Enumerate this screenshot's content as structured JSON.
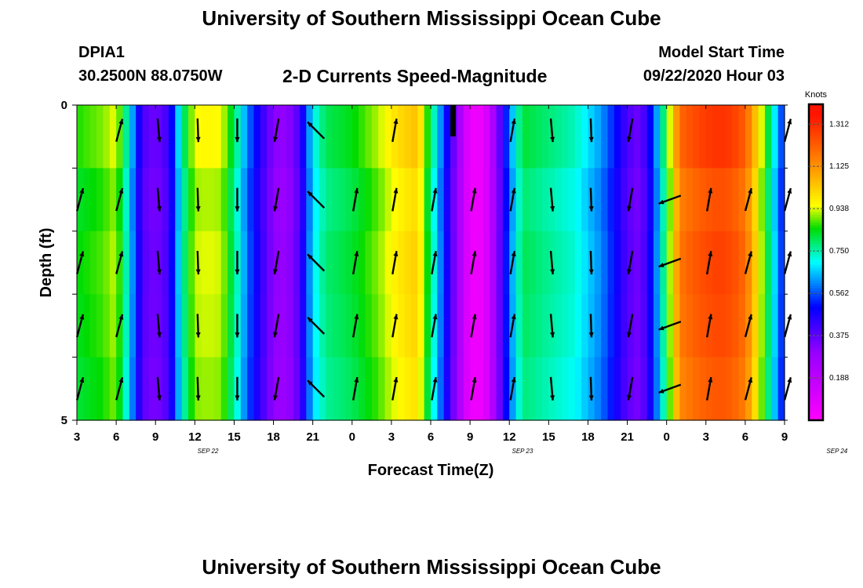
{
  "header": {
    "title": "University of Southern Mississippi Ocean Cube",
    "station_id": "DPIA1",
    "station_coords": "30.2500N 88.0750W",
    "subtitle": "2-D Currents Speed-Magnitude",
    "start_label": "Model Start Time",
    "start_value": "09/22/2020 Hour 03"
  },
  "footer": {
    "title": "University of Southern Mississippi Ocean Cube"
  },
  "chart_data": {
    "type": "heatmap",
    "xlabel": "Forecast Time(Z)",
    "ylabel": "Depth (ft)",
    "x_tick_labels": [
      "3",
      "6",
      "9",
      "12",
      "15",
      "18",
      "21",
      "0",
      "3",
      "6",
      "9",
      "12",
      "15",
      "18",
      "21",
      "0",
      "3",
      "6",
      "9"
    ],
    "date_labels": [
      {
        "label": "SEP 22",
        "hour_index": 10
      },
      {
        "label": "SEP 23",
        "hour_index": 34
      },
      {
        "label": "SEP 24",
        "hour_index": 58
      }
    ],
    "y_tick_labels": [
      "0",
      "5"
    ],
    "ylim": [
      0,
      5
    ],
    "depth_levels": [
      0,
      1,
      2,
      3,
      4,
      5
    ],
    "hours_total": 54,
    "colorbar": {
      "unit_label": "Knots",
      "min": 0.0,
      "max": 1.4,
      "tick_labels": [
        "1.312",
        "1.125",
        "0.938",
        "0.750",
        "0.562",
        "0.375",
        "0.188"
      ],
      "tick_values": [
        1.312,
        1.125,
        0.938,
        0.75,
        0.562,
        0.375,
        0.188
      ]
    },
    "speed_profile_hours": [
      0,
      2,
      3,
      4,
      5,
      6,
      7,
      8,
      9,
      10,
      11,
      12,
      13,
      14,
      15,
      16,
      17,
      18,
      19,
      20,
      21,
      22,
      23,
      24,
      25,
      26,
      27,
      28,
      29,
      30,
      31,
      32,
      33,
      34,
      35,
      36,
      37,
      38,
      39,
      40,
      41,
      42,
      43,
      44,
      45,
      46,
      47,
      48,
      49,
      50,
      51,
      52,
      53,
      54
    ],
    "speed_profile_knots": [
      0.86,
      0.9,
      0.95,
      0.7,
      0.4,
      0.35,
      0.42,
      0.75,
      0.95,
      0.96,
      0.95,
      0.8,
      0.6,
      0.45,
      0.32,
      0.3,
      0.4,
      0.7,
      0.8,
      0.82,
      0.84,
      0.88,
      0.92,
      0.98,
      1.02,
      1.05,
      0.8,
      0.55,
      0.3,
      0.05,
      0.05,
      0.3,
      0.6,
      0.82,
      0.8,
      0.78,
      0.76,
      0.74,
      0.68,
      0.62,
      0.52,
      0.4,
      0.35,
      0.55,
      0.85,
      1.2,
      1.25,
      1.28,
      1.3,
      1.28,
      1.22,
      1.0,
      0.75,
      0.5
    ],
    "depth_speed_factor": [
      1.0,
      0.96,
      0.98,
      0.97,
      0.95,
      0.88
    ],
    "vector_hours": [
      0,
      3,
      6,
      9,
      12,
      15,
      18,
      21,
      24,
      27,
      30,
      33,
      36,
      39,
      42,
      45,
      48,
      51,
      54
    ],
    "vector_directions_deg": [
      15,
      15,
      175,
      178,
      180,
      190,
      315,
      10,
      10,
      10,
      10,
      10,
      175,
      178,
      190,
      250,
      10,
      15,
      15
    ],
    "missing_surface_vectors_at_hours": [
      0,
      21,
      27,
      30,
      45,
      48,
      51
    ]
  }
}
